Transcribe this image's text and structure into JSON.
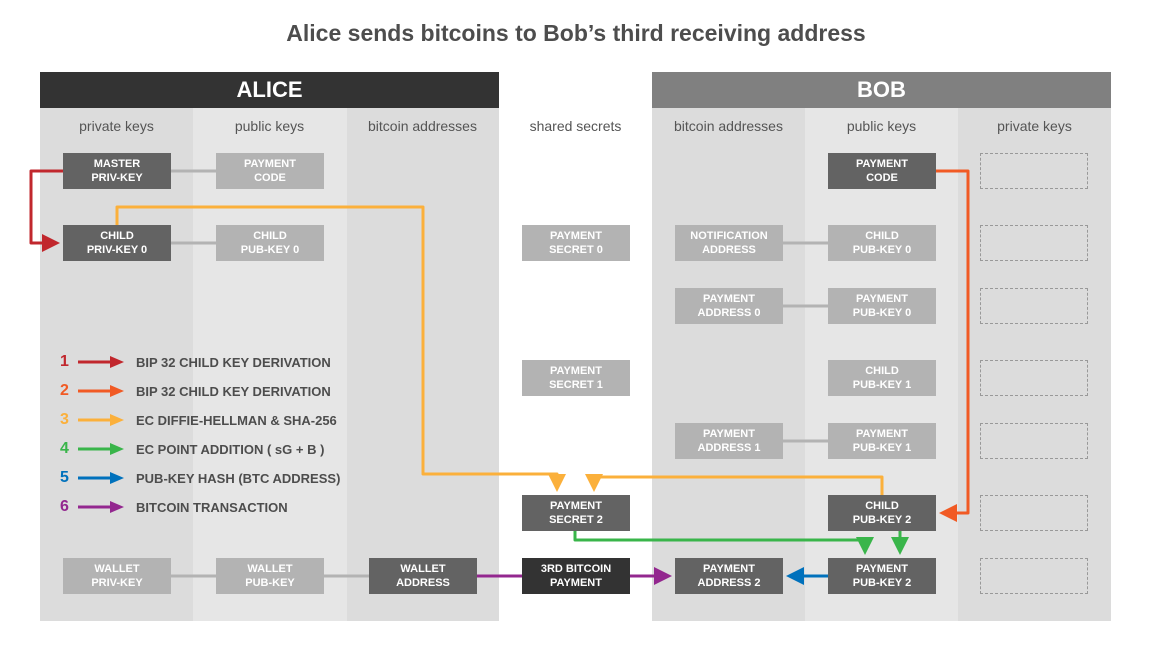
{
  "title": "Alice sends bitcoins to Bob’s third receiving address",
  "alice": {
    "header": "ALICE",
    "columns": [
      "private keys",
      "public keys",
      "bitcoin addresses"
    ]
  },
  "shared": {
    "column": "shared secrets"
  },
  "bob": {
    "header": "BOB",
    "columns": [
      "bitcoin addresses",
      "public keys",
      "private keys"
    ]
  },
  "boxes": {
    "master_priv": [
      "MASTER",
      "PRIV-KEY"
    ],
    "alice_payment_code": [
      "PAYMENT",
      "CODE"
    ],
    "child_priv0": [
      "CHILD",
      "PRIV-KEY 0"
    ],
    "alice_child_pub0": [
      "CHILD",
      "PUB-KEY 0"
    ],
    "wallet_priv": [
      "WALLET",
      "PRIV-KEY"
    ],
    "wallet_pub": [
      "WALLET",
      "PUB-KEY"
    ],
    "wallet_addr": [
      "WALLET",
      "ADDRESS"
    ],
    "secret0": [
      "PAYMENT",
      "SECRET 0"
    ],
    "secret1": [
      "PAYMENT",
      "SECRET 1"
    ],
    "secret2": [
      "PAYMENT",
      "SECRET 2"
    ],
    "payment3": [
      "3RD BITCOIN",
      "PAYMENT"
    ],
    "notif_addr": [
      "NOTIFICATION",
      "ADDRESS"
    ],
    "pay_addr0": [
      "PAYMENT",
      "ADDRESS 0"
    ],
    "pay_addr1": [
      "PAYMENT",
      "ADDRESS 1"
    ],
    "pay_addr2": [
      "PAYMENT",
      "ADDRESS 2"
    ],
    "bob_payment_code": [
      "PAYMENT",
      "CODE"
    ],
    "bob_child_pub0": [
      "CHILD",
      "PUB-KEY 0"
    ],
    "pay_pub0": [
      "PAYMENT",
      "PUB-KEY 0"
    ],
    "bob_child_pub1": [
      "CHILD",
      "PUB-KEY 1"
    ],
    "pay_pub1": [
      "PAYMENT",
      "PUB-KEY 1"
    ],
    "bob_child_pub2": [
      "CHILD",
      "PUB-KEY 2"
    ],
    "pay_pub2": [
      "PAYMENT",
      "PUB-KEY 2"
    ]
  },
  "legend": [
    {
      "num": "1",
      "label": "BIP 32 CHILD KEY DERIVATION",
      "color": "#c1272d"
    },
    {
      "num": "2",
      "label": "BIP 32 CHILD KEY DERIVATION",
      "color": "#f15a24"
    },
    {
      "num": "3",
      "label": "EC DIFFIE-HELLMAN & SHA-256",
      "color": "#fbb03b"
    },
    {
      "num": "4",
      "label": "EC POINT ADDITION ( sG + B )",
      "color": "#39b54a"
    },
    {
      "num": "5",
      "label": "PUB-KEY HASH (BTC ADDRESS)",
      "color": "#0071bc"
    },
    {
      "num": "6",
      "label": "BITCOIN TRANSACTION",
      "color": "#93278f"
    }
  ]
}
